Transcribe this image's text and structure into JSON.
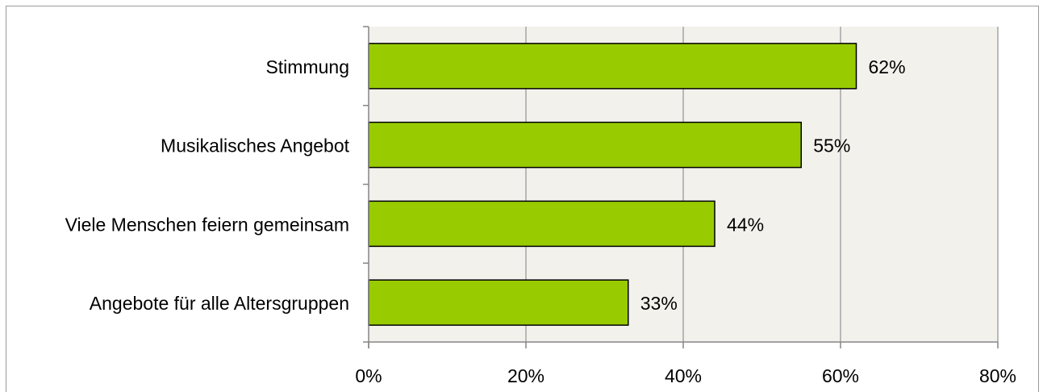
{
  "chart_data": {
    "type": "bar",
    "orientation": "horizontal",
    "categories": [
      "Stimmung",
      "Musikalisches Angebot",
      "Viele Menschen feiern gemeinsam",
      "Angebote für alle Altersgruppen"
    ],
    "values": [
      62,
      55,
      44,
      33
    ],
    "value_labels": [
      "62%",
      "55%",
      "44%",
      "33%"
    ],
    "xlim": [
      0,
      80
    ],
    "x_ticks": [
      0,
      20,
      40,
      60,
      80
    ],
    "x_tick_labels": [
      "0%",
      "20%",
      "40%",
      "60%",
      "80%"
    ],
    "grid": true,
    "legend": "none",
    "colors": {
      "bar_fill": "#99cc00",
      "bar_stroke": "#000000",
      "plot_background": "#f3f1ec",
      "gridline": "#a6a6a6",
      "axis": "#868686"
    }
  }
}
